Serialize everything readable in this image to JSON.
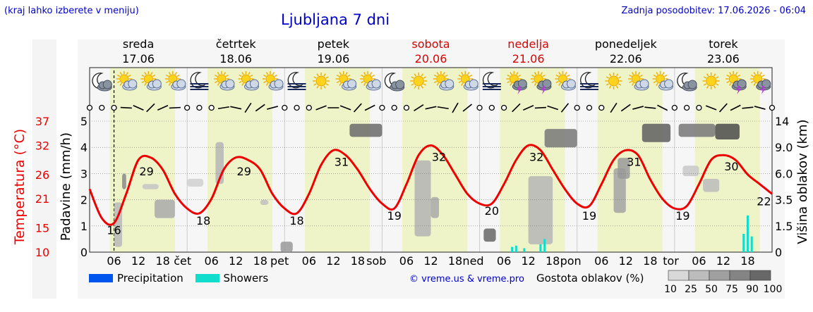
{
  "header": {
    "hint": "(kraj lahko izberete v meniju)",
    "title": "Ljubljana 7 dni",
    "updated": "Zadnja posodobitev: 17.06.2026 - 06:04"
  },
  "days": [
    {
      "name": "sreda",
      "date": "17.06",
      "weekend": false,
      "icons": [
        "moon-cloud",
        "sun-cloud",
        "sun-cloud",
        "sun-cloud"
      ]
    },
    {
      "name": "četrtek",
      "date": "18.06",
      "weekend": false,
      "icons": [
        "moon-fog",
        "sun-cloud",
        "sun-cloud",
        "sun-cloud"
      ]
    },
    {
      "name": "petek",
      "date": "19.06",
      "weekend": false,
      "icons": [
        "moon-fog",
        "sun",
        "sun-cloud",
        "sun-cloud"
      ]
    },
    {
      "name": "sobota",
      "date": "20.06",
      "weekend": true,
      "icons": [
        "moon-cloud",
        "sun",
        "sun-cloud",
        "sun-cloud"
      ]
    },
    {
      "name": "nedelja",
      "date": "21.06",
      "weekend": true,
      "icons": [
        "moon-fog",
        "sun-storm",
        "sun-storm",
        "sun-cloud"
      ]
    },
    {
      "name": "ponedeljek",
      "date": "22.06",
      "weekend": false,
      "icons": [
        "moon-fog",
        "sun",
        "sun-cloud",
        "sun-cloud"
      ]
    },
    {
      "name": "torek",
      "date": "23.06",
      "weekend": false,
      "icons": [
        "moon-cloud",
        "sun",
        "sun-storm",
        "sun-storm"
      ]
    }
  ],
  "x_labels": [
    "06",
    "12",
    "18",
    "čet",
    "06",
    "12",
    "18",
    "pet",
    "06",
    "12",
    "18",
    "sob",
    "06",
    "12",
    "18",
    "ned",
    "06",
    "12",
    "18",
    "pon",
    "06",
    "12",
    "18",
    "tor",
    "06",
    "12",
    "18"
  ],
  "axes": {
    "temp_label": "Temperatura (°C)",
    "temp_ticks": [
      "10",
      "15",
      "21",
      "26",
      "32",
      "37"
    ],
    "precip_label": "Padavine (mm/h)",
    "precip_ticks": [
      "0",
      "1",
      "2",
      "3",
      "4",
      "5"
    ],
    "cloud_label": "Višina oblakov (km)",
    "cloud_ticks": [
      "0",
      "1.5",
      "3.5",
      "6.0",
      "9.0",
      "14"
    ]
  },
  "legend": {
    "precipitation": "Precipitation",
    "showers": "Showers",
    "credit": "© vreme.us & vreme.pro",
    "cloud_density": "Gostota oblakov (%)",
    "density_ticks": [
      "10",
      "25",
      "50",
      "75",
      "90",
      "100"
    ]
  },
  "colors": {
    "temperature": "#ee0000",
    "precipitation": "#0055ee",
    "showers": "#11ddcc",
    "daylight": "#eef4c8",
    "weekend_text": "#dd0000",
    "link_text": "#0000cc"
  },
  "chart_data": {
    "type": "line",
    "x_unit": "hours from 17.06 00:00",
    "xlim": [
      0,
      168
    ],
    "ylabel": "Temperatura (°C)",
    "ylim": [
      10,
      37
    ],
    "series": [
      {
        "name": "Temperatura (°C)",
        "x": [
          0,
          3,
          6,
          9,
          12,
          15,
          18,
          21,
          24,
          27,
          30,
          33,
          36,
          39,
          42,
          45,
          48,
          51,
          54,
          57,
          60,
          63,
          66,
          69,
          72,
          75,
          78,
          81,
          84,
          87,
          90,
          93,
          96,
          99,
          102,
          105,
          108,
          111,
          114,
          117,
          120,
          123,
          126,
          129,
          132,
          135,
          138,
          141,
          144,
          147,
          150,
          153,
          156,
          159,
          162,
          165,
          168
        ],
        "values": [
          23,
          17,
          16,
          22,
          29,
          29.5,
          27,
          22,
          19,
          18,
          21,
          27,
          29.5,
          29,
          27,
          22,
          19,
          18,
          22,
          28,
          31,
          30,
          27,
          23,
          20,
          19,
          24,
          30,
          32,
          30,
          26,
          22,
          20,
          20,
          24,
          29,
          32,
          31,
          27,
          23,
          20,
          19.5,
          24,
          29,
          31,
          30,
          25,
          21,
          19,
          19.5,
          24,
          29,
          30,
          29,
          26,
          24,
          22
        ]
      }
    ],
    "point_labels": [
      {
        "x": 6,
        "value": "16"
      },
      {
        "x": 14,
        "value": "29"
      },
      {
        "x": 28,
        "value": "18"
      },
      {
        "x": 38,
        "value": "29"
      },
      {
        "x": 51,
        "value": "18"
      },
      {
        "x": 62,
        "value": "31"
      },
      {
        "x": 75,
        "value": "19"
      },
      {
        "x": 86,
        "value": "32"
      },
      {
        "x": 99,
        "value": "20"
      },
      {
        "x": 110,
        "value": "32"
      },
      {
        "x": 123,
        "value": "19"
      },
      {
        "x": 134,
        "value": "31"
      },
      {
        "x": 146,
        "value": "19"
      },
      {
        "x": 158,
        "value": "30"
      },
      {
        "x": 166,
        "value": "22"
      }
    ],
    "showers": [
      {
        "x": 104,
        "mm": 0.2
      },
      {
        "x": 105,
        "mm": 0.25
      },
      {
        "x": 107,
        "mm": 0.15
      },
      {
        "x": 111,
        "mm": 0.3
      },
      {
        "x": 112,
        "mm": 0.5
      },
      {
        "x": 161,
        "mm": 0.7
      },
      {
        "x": 162,
        "mm": 1.4
      },
      {
        "x": 163,
        "mm": 0.6
      }
    ],
    "grid": true
  }
}
